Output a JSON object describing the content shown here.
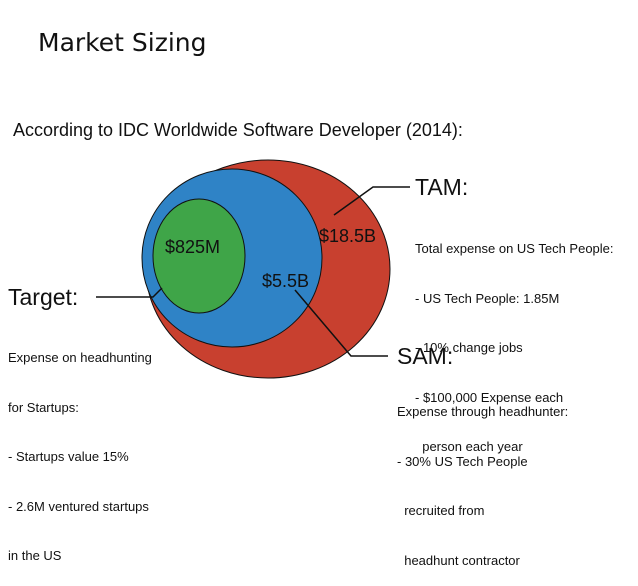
{
  "slide": {
    "title": "Market Sizing",
    "subtitle": "According to IDC Worldwide Software Developer (2014):"
  },
  "colors": {
    "tam": "#c8402f",
    "sam": "#2f83c6",
    "target": "#3fa548",
    "outline": "#111111"
  },
  "circles": {
    "tam_value": "$18.5B",
    "sam_value": "$5.5B",
    "target_value": "$825M"
  },
  "callouts": {
    "tam": {
      "heading": "TAM:",
      "lines": [
        "Total expense on US Tech People:",
        "- US Tech People: 1.85M",
        "- 10% change jobs",
        "- $100,000 Expense each",
        "  person each year"
      ]
    },
    "sam": {
      "heading": "SAM:",
      "lines": [
        "Expense through headhunter:",
        "- 30% US Tech People",
        "  recruited from",
        "  headhunt contractor"
      ]
    },
    "target": {
      "heading": "Target:",
      "lines": [
        "Expense on headhunting",
        "for Startups:",
        "- Startups value 15%",
        "- 2.6M ventured startups",
        "in the US"
      ]
    }
  }
}
